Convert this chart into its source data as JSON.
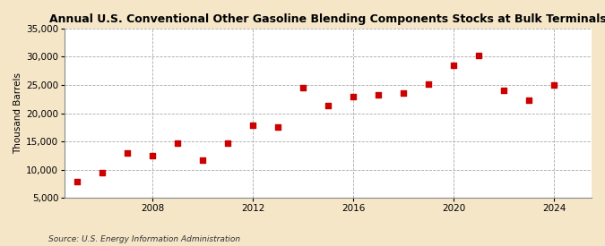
{
  "title": "Annual U.S. Conventional Other Gasoline Blending Components Stocks at Bulk Terminals",
  "ylabel": "Thousand Barrels",
  "source": "Source: U.S. Energy Information Administration",
  "background_color": "#f5e6c8",
  "plot_background_color": "#ffffff",
  "marker_color": "#cc0000",
  "marker": "s",
  "marker_size": 4,
  "xlim": [
    2004.5,
    2025.5
  ],
  "ylim": [
    5000,
    35000
  ],
  "yticks": [
    5000,
    10000,
    15000,
    20000,
    25000,
    30000,
    35000
  ],
  "xticks": [
    2008,
    2012,
    2016,
    2020,
    2024
  ],
  "years": [
    2005,
    2006,
    2007,
    2008,
    2009,
    2010,
    2011,
    2012,
    2013,
    2014,
    2015,
    2016,
    2017,
    2018,
    2019,
    2020,
    2021,
    2022,
    2023,
    2024
  ],
  "values": [
    7800,
    9500,
    13000,
    12500,
    14700,
    11700,
    14700,
    17900,
    17500,
    24500,
    21300,
    23000,
    23300,
    23500,
    25100,
    28500,
    30200,
    24000,
    22300,
    25000
  ]
}
